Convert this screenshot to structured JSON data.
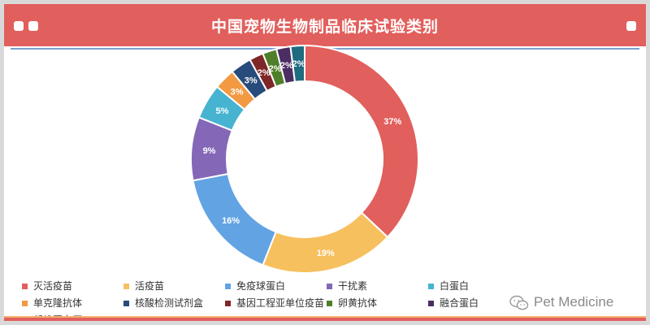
{
  "header": {
    "title": "中国宠物生物制品临床试验类别"
  },
  "chart_data": {
    "type": "pie",
    "style": "donut",
    "title": "中国宠物生物制品临床试验类别",
    "legend_position": "bottom",
    "value_unit": "%",
    "slices": [
      {
        "label": "灭活疫苗",
        "value": 37,
        "color": "#e15f5c"
      },
      {
        "label": "活疫苗",
        "value": 19,
        "color": "#f7c05e"
      },
      {
        "label": "免疫球蛋白",
        "value": 16,
        "color": "#62a3e3"
      },
      {
        "label": "干扰素",
        "value": 9,
        "color": "#8467b7"
      },
      {
        "label": "白蛋白",
        "value": 5,
        "color": "#46b3d1"
      },
      {
        "label": "单克隆抗体",
        "value": 3,
        "color": "#f29a43"
      },
      {
        "label": "核酸检测试剂盒",
        "value": 3,
        "color": "#274b7a"
      },
      {
        "label": "基因工程亚单位疫苗",
        "value": 2,
        "color": "#7f2727"
      },
      {
        "label": "卵黄抗体",
        "value": 2,
        "color": "#4f7f2a"
      },
      {
        "label": "融合蛋白",
        "value": 2,
        "color": "#4b2c63"
      },
      {
        "label": "纤维蛋白原",
        "value": 2,
        "color": "#1f6b80"
      }
    ]
  },
  "watermark": {
    "text": "Pet Medicine",
    "icon": "wechat-icon"
  }
}
